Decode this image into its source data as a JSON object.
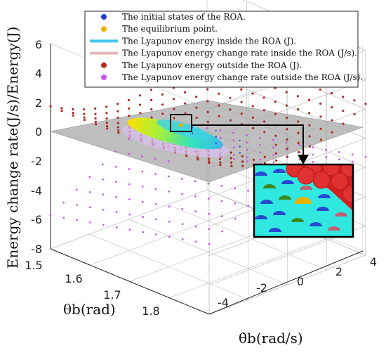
{
  "chart_data": {
    "type": "scatter",
    "dimensions": 3,
    "zlabel": "Energy change rate(J/s)/Energy(J)",
    "xlabel": "θb(rad)",
    "ylabel": "θ̇b(rad/s)",
    "x_ticks": [
      "1.5",
      "1.6",
      "1.7",
      "1.8"
    ],
    "y_ticks": [
      "-4",
      "-2",
      "0",
      "2",
      "4"
    ],
    "z_ticks": [
      "-8",
      "-6",
      "-4",
      "-2",
      "0",
      "2",
      "4",
      "6"
    ],
    "xlim": [
      1.5,
      1.9
    ],
    "ylim": [
      -4,
      4
    ],
    "zlim": [
      -8,
      6
    ],
    "grid": true,
    "legend_position": "top",
    "zero_plane": {
      "z": 0,
      "color": "#a8a8a8"
    },
    "series": [
      {
        "name": "The initial states of the ROA.",
        "color": "#1f3fd6",
        "marker": "dot"
      },
      {
        "name": "The equilibrium point.",
        "color": "#e8b400",
        "marker": "dot"
      },
      {
        "name": "The Lyapunov energy inside the ROA (J).",
        "color": "#40c8f0",
        "marker": "line"
      },
      {
        "name": "The Lyapunov energy change rate inside the ROA (J/s).",
        "color": "#e2b8b8",
        "marker": "line"
      },
      {
        "name": "The Lyapunov energy outside the ROA (J).",
        "color": "#b02a1a",
        "marker": "dot"
      },
      {
        "name": "The Lyapunov energy change rate outside the ROA (J/s).",
        "color": "#cc55ee",
        "marker": "dot"
      }
    ],
    "equilibrium_point": {
      "x": 1.74,
      "y": 0,
      "z": 0
    },
    "inset": {
      "type": "zoom",
      "of": "region around the equilibrium point"
    }
  }
}
